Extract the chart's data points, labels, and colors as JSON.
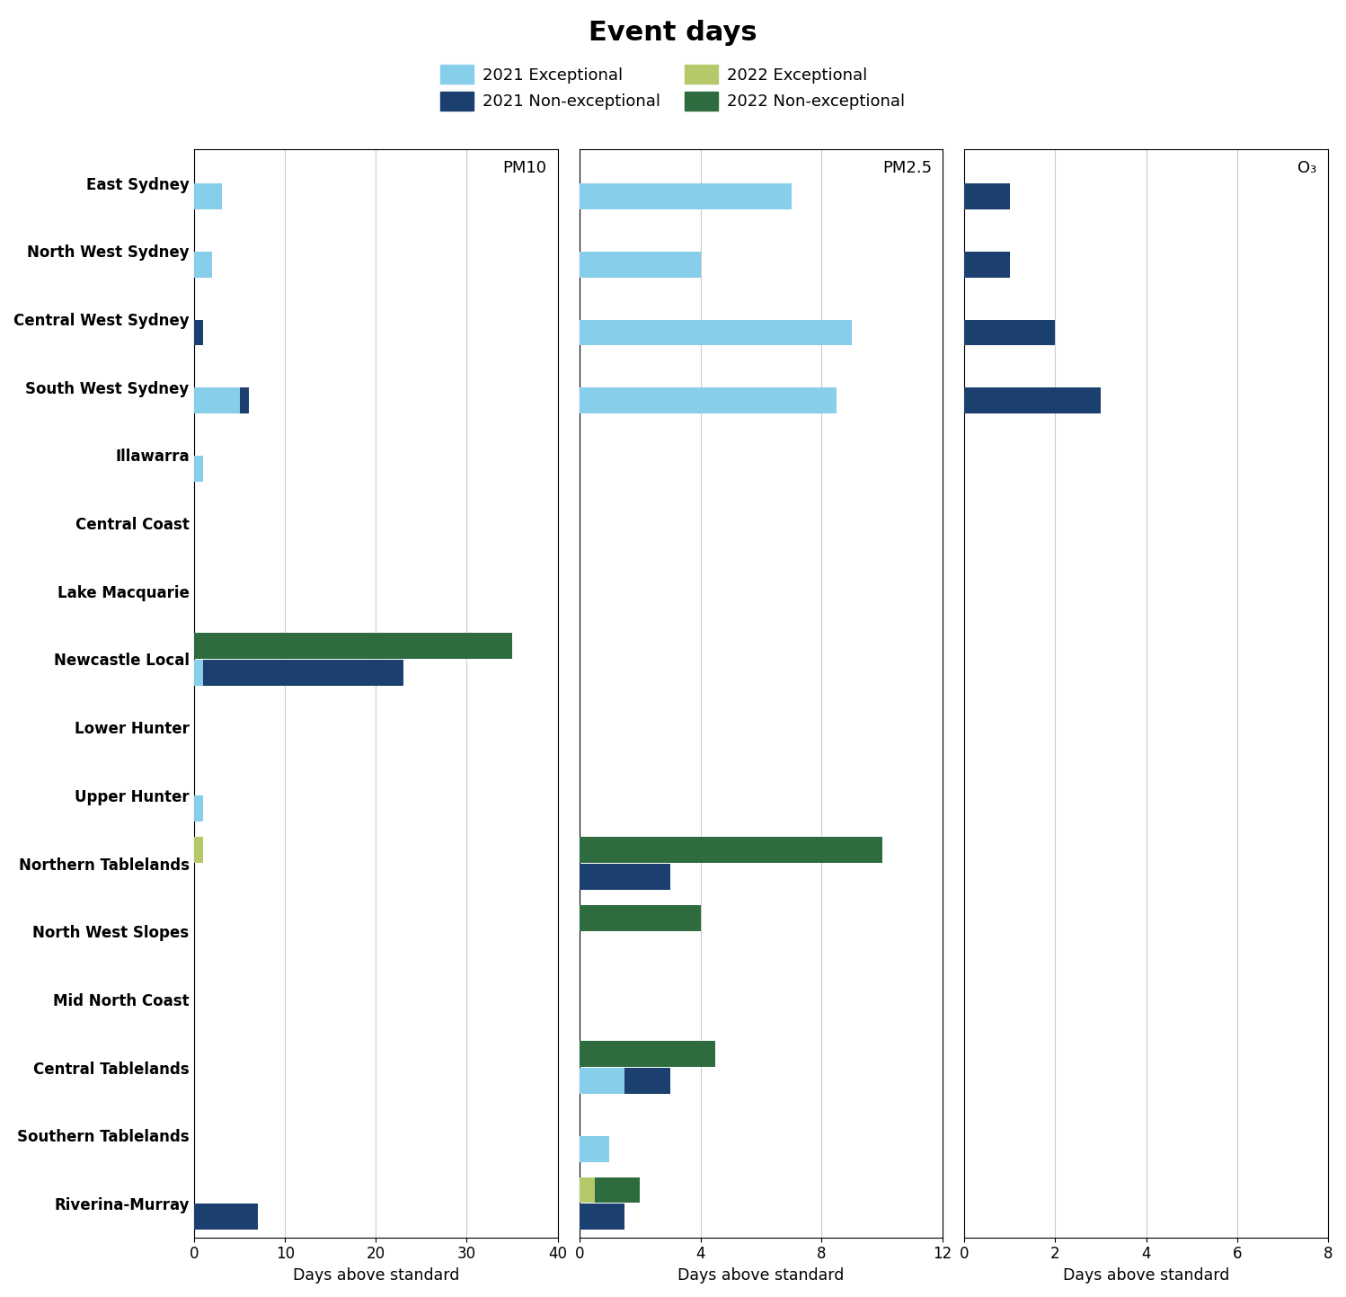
{
  "title": "Event days",
  "regions": [
    "East Sydney",
    "North West Sydney",
    "Central West Sydney",
    "South West Sydney",
    "Illawarra",
    "Central Coast",
    "Lake Macquarie",
    "Newcastle Local",
    "Lower Hunter",
    "Upper Hunter",
    "Northern Tablelands",
    "North West Slopes",
    "Mid North Coast",
    "Central Tablelands",
    "Southern Tablelands",
    "Riverina-Murray"
  ],
  "pm10": {
    "exc_2021": [
      3,
      2,
      0,
      5,
      1,
      0,
      0,
      1,
      0,
      1,
      0,
      0,
      0,
      0,
      0,
      0
    ],
    "nonexc_2021": [
      0,
      0,
      1,
      1,
      0,
      0,
      0,
      22,
      0,
      0,
      0,
      0,
      0,
      0,
      0,
      7
    ],
    "exc_2022": [
      0,
      0,
      0,
      0,
      0,
      0,
      0,
      0,
      0,
      0,
      1,
      0,
      0,
      0,
      0,
      0
    ],
    "nonexc_2022": [
      0,
      0,
      0,
      0,
      0,
      0,
      0,
      35,
      0,
      0,
      0,
      0,
      0,
      0,
      0,
      0
    ]
  },
  "pm25": {
    "exc_2021": [
      7,
      4,
      9,
      8.5,
      0,
      0,
      0,
      0,
      0,
      0,
      0,
      0,
      0,
      1.5,
      1,
      0
    ],
    "nonexc_2021": [
      0,
      0,
      0,
      0,
      0,
      0,
      0,
      0,
      0,
      0,
      3,
      0,
      0,
      1.5,
      0,
      1.5
    ],
    "exc_2022": [
      0,
      0,
      0,
      0,
      0,
      0,
      0,
      0,
      0,
      0,
      0,
      0,
      0,
      0,
      0,
      0.5
    ],
    "nonexc_2022": [
      0,
      0,
      0,
      0,
      0,
      0,
      0,
      0,
      0,
      0,
      10,
      4,
      0,
      4.5,
      0,
      1.5
    ]
  },
  "o3": {
    "exc_2021": [
      0,
      0,
      0,
      0,
      0,
      0,
      0,
      0,
      0,
      0,
      0,
      0,
      0,
      0,
      0,
      0
    ],
    "nonexc_2021": [
      1,
      1,
      2,
      3,
      0,
      0,
      0,
      0,
      0,
      0,
      0,
      0,
      0,
      0,
      0,
      0
    ],
    "exc_2022": [
      0,
      0,
      0,
      0,
      0,
      0,
      0,
      0,
      0,
      0,
      0,
      0,
      0,
      0,
      0,
      0
    ],
    "nonexc_2022": [
      0,
      0,
      0,
      0,
      0,
      0,
      0,
      0,
      0,
      0,
      0,
      0,
      0,
      0,
      0,
      0
    ]
  },
  "colors": {
    "exc_2021": "#87CEEB",
    "nonexc_2021": "#1B3F6E",
    "exc_2022": "#B5C96A",
    "nonexc_2022": "#2E6B3E"
  },
  "xlim_pm10": [
    0,
    40
  ],
  "xlim_pm25": [
    0,
    12
  ],
  "xlim_o3": [
    0,
    8
  ],
  "xticks_pm10": [
    0,
    10,
    20,
    30,
    40
  ],
  "xticks_pm25": [
    0,
    4,
    8,
    12
  ],
  "xticks_o3": [
    0,
    2,
    4,
    6,
    8
  ],
  "legend_labels": [
    "2021 Exceptional",
    "2021 Non-exceptional",
    "2022 Exceptional",
    "2022 Non-exceptional"
  ],
  "panel_labels": [
    "PM10",
    "PM2.5",
    "O₃"
  ]
}
